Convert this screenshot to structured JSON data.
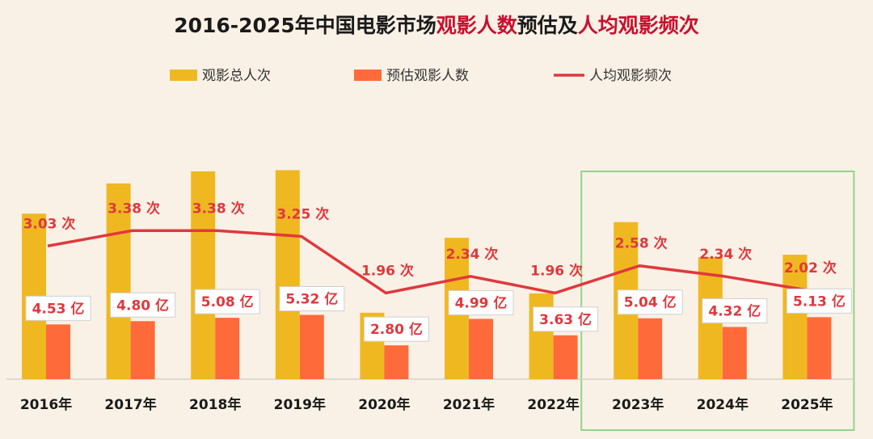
{
  "chart_data": {
    "type": "bar",
    "title_parts": [
      {
        "text": "2016-2025年中国电影市场",
        "color": "#1a1a1a"
      },
      {
        "text": "观影人数",
        "color": "#c8102e"
      },
      {
        "text": "预估及",
        "color": "#1a1a1a"
      },
      {
        "text": "人均观影频次",
        "color": "#c8102e"
      }
    ],
    "categories": [
      "2016年",
      "2017年",
      "2018年",
      "2019年",
      "2020年",
      "2021年",
      "2022年",
      "2023年",
      "2024年",
      "2025年"
    ],
    "series": [
      {
        "name": "观影总人次",
        "type": "bar",
        "color": "#f0b820",
        "values": [
          13.7,
          16.2,
          17.2,
          17.3,
          5.5,
          11.7,
          7.1,
          13.0,
          10.1,
          10.3
        ]
      },
      {
        "name": "预估观影人数",
        "type": "bar",
        "color": "#ff6a3a",
        "values": [
          4.53,
          4.8,
          5.08,
          5.32,
          2.8,
          4.99,
          3.63,
          5.04,
          4.32,
          5.13
        ],
        "labels": [
          "4.53 亿",
          "4.80 亿",
          "5.08 亿",
          "5.32 亿",
          "2.80 亿",
          "4.99 亿",
          "3.63 亿",
          "5.04 亿",
          "4.32 亿",
          "5.13 亿"
        ]
      },
      {
        "name": "人均观影频次",
        "type": "line",
        "color": "#e0383e",
        "values": [
          3.03,
          3.38,
          3.38,
          3.25,
          1.96,
          2.34,
          1.96,
          2.58,
          2.34,
          2.02
        ],
        "labels": [
          "3.03 次",
          "3.38 次",
          "3.38 次",
          "3.25 次",
          "1.96 次",
          "2.34 次",
          "1.96 次",
          "2.58 次",
          "2.34 次",
          "2.02 次"
        ]
      }
    ],
    "legend_position": "top-center",
    "grid": false,
    "highlight_categories": [
      "2023年",
      "2024年",
      "2025年"
    ],
    "highlight_color": "#8fd68a",
    "label_color": "#e0383e"
  }
}
